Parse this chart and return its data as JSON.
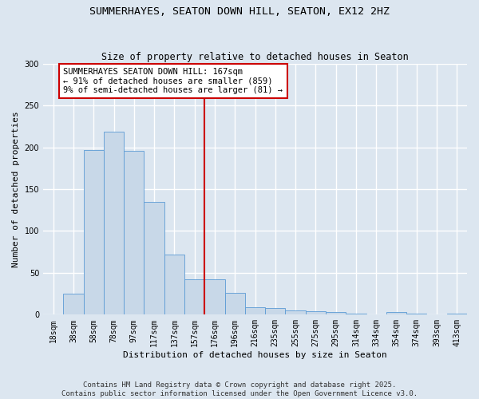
{
  "title": "SUMMERHAYES, SEATON DOWN HILL, SEATON, EX12 2HZ",
  "subtitle": "Size of property relative to detached houses in Seaton",
  "xlabel": "Distribution of detached houses by size in Seaton",
  "ylabel": "Number of detached properties",
  "bin_labels": [
    "18sqm",
    "38sqm",
    "58sqm",
    "78sqm",
    "97sqm",
    "117sqm",
    "137sqm",
    "157sqm",
    "176sqm",
    "196sqm",
    "216sqm",
    "235sqm",
    "255sqm",
    "275sqm",
    "295sqm",
    "314sqm",
    "334sqm",
    "354sqm",
    "374sqm",
    "393sqm",
    "413sqm"
  ],
  "bar_values": [
    0,
    25,
    197,
    219,
    196,
    135,
    72,
    42,
    42,
    26,
    9,
    8,
    5,
    4,
    3,
    1,
    0,
    3,
    1,
    0,
    1
  ],
  "bar_color": "#c8d8e8",
  "bar_edge_color": "#5b9bd5",
  "vline_x": 7.5,
  "vline_color": "#cc0000",
  "annotation_text": "SUMMERHAYES SEATON DOWN HILL: 167sqm\n← 91% of detached houses are smaller (859)\n9% of semi-detached houses are larger (81) →",
  "annotation_box_color": "#ffffff",
  "annotation_box_edge": "#cc0000",
  "ylim": [
    0,
    300
  ],
  "yticks": [
    0,
    50,
    100,
    150,
    200,
    250,
    300
  ],
  "background_color": "#dce6f0",
  "grid_color": "#ffffff",
  "footer_line1": "Contains HM Land Registry data © Crown copyright and database right 2025.",
  "footer_line2": "Contains public sector information licensed under the Open Government Licence v3.0.",
  "title_fontsize": 9.5,
  "subtitle_fontsize": 8.5,
  "axis_label_fontsize": 8,
  "tick_fontsize": 7,
  "annotation_fontsize": 7.5,
  "footer_fontsize": 6.5
}
